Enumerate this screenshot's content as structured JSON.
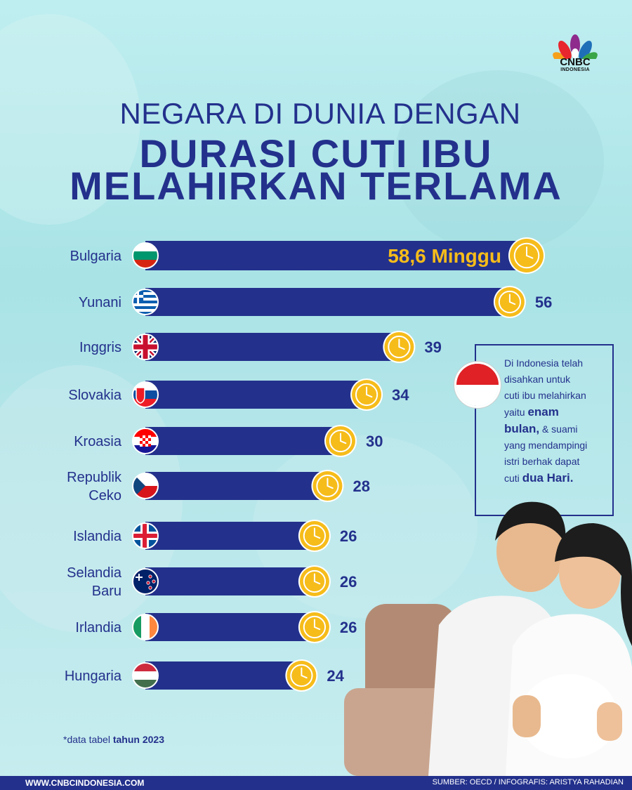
{
  "header": {
    "logo_text": "CNBC",
    "logo_sub": "INDONESIA",
    "title_line1": "NEGARA DI DUNIA DENGAN",
    "title_line2": "DURASI CUTI IBU",
    "title_line3": "MELAHIRKAN TERLAMA"
  },
  "colors": {
    "navy": "#23318c",
    "gold": "#f6bc1a",
    "background": "#b6e6ea"
  },
  "chart_data": {
    "type": "bar",
    "orientation": "horizontal",
    "unit": "Minggu",
    "categories": [
      "Bulgaria",
      "Yunani",
      "Inggris",
      "Slovakia",
      "Kroasia",
      "Republik Ceko",
      "Islandia",
      "Selandia Baru",
      "Irlandia",
      "Hungaria"
    ],
    "category_lines": [
      [
        "Bulgaria"
      ],
      [
        "Yunani"
      ],
      [
        "Inggris"
      ],
      [
        "Slovakia"
      ],
      [
        "Kroasia"
      ],
      [
        "Republik",
        "Ceko"
      ],
      [
        "Islandia"
      ],
      [
        "Selandia",
        "Baru"
      ],
      [
        "Irlandia"
      ],
      [
        "Hungaria"
      ]
    ],
    "values": [
      58.6,
      56,
      39,
      34,
      30,
      28,
      26,
      26,
      26,
      24
    ],
    "value_labels": [
      "58,6 Minggu",
      "56",
      "39",
      "34",
      "30",
      "28",
      "26",
      "26",
      "26",
      "24"
    ],
    "flags": [
      "bulgaria-flag",
      "greece-flag",
      "uk-flag",
      "slovakia-flag",
      "croatia-flag",
      "czech-flag",
      "iceland-flag",
      "new-zealand-flag",
      "ireland-flag",
      "hungary-flag"
    ],
    "xlim": [
      0,
      58.6
    ]
  },
  "info_box": {
    "line1": "Di Indonesia telah",
    "line2": "disahkan untuk",
    "line3": "cuti ibu melahirkan",
    "line4_plain": "yaitu ",
    "line4_bold": "enam",
    "line5_bold": "bulan,",
    "line5_plain": " & suami",
    "line6": "yang mendampingi",
    "line7": "istri berhak dapat",
    "line8_plain": "cuti ",
    "line8_bold": "dua Hari."
  },
  "footnote": {
    "plain": "*data tabel ",
    "bold": "tahun 2023"
  },
  "footer": {
    "website": "WWW.CNBCINDONESIA.COM",
    "source": "SUMBER: OECD / INFOGRAFIS: ARISTYA RAHADIAN"
  }
}
